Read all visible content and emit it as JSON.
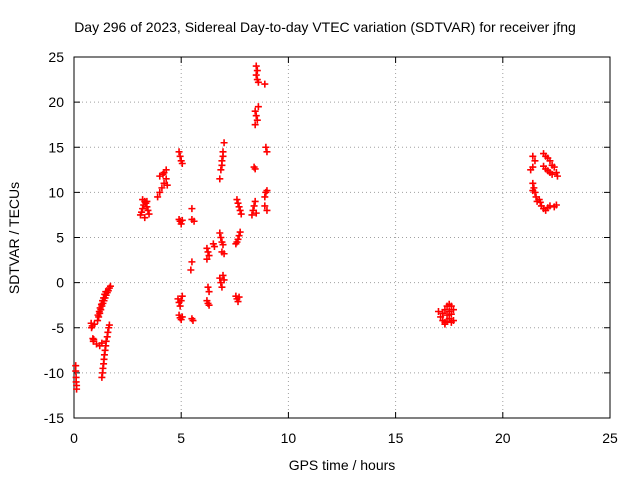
{
  "chart_data": {
    "type": "scatter",
    "title": "Day 296 of 2023, Sidereal Day-to-day VTEC variation (SDTVAR) for receiver jfng",
    "xlabel": "GPS time / hours",
    "ylabel": "SDTVAR / TECUs",
    "xlim": [
      0,
      25
    ],
    "ylim": [
      -15,
      25
    ],
    "xticks": [
      0,
      5,
      10,
      15,
      20,
      25
    ],
    "yticks": [
      -15,
      -10,
      -5,
      0,
      5,
      10,
      15,
      20,
      25
    ],
    "grid": true,
    "marker": "plus",
    "series": [
      {
        "name": "SDTVAR",
        "color": "#ff0000",
        "points": [
          [
            0.08,
            -9.2
          ],
          [
            0.08,
            -9.8
          ],
          [
            0.1,
            -10.5
          ],
          [
            0.1,
            -11.0
          ],
          [
            0.12,
            -11.4
          ],
          [
            0.12,
            -11.8
          ],
          [
            0.8,
            -4.5
          ],
          [
            0.82,
            -5.0
          ],
          [
            0.85,
            -4.8
          ],
          [
            0.88,
            -6.2
          ],
          [
            0.9,
            -6.5
          ],
          [
            0.92,
            -6.3
          ],
          [
            0.95,
            -4.6
          ],
          [
            1.1,
            -4.2
          ],
          [
            1.15,
            -3.8
          ],
          [
            1.2,
            -3.4
          ],
          [
            1.25,
            -3.0
          ],
          [
            1.3,
            -2.6
          ],
          [
            1.35,
            -2.3
          ],
          [
            1.4,
            -2.0
          ],
          [
            1.45,
            -1.7
          ],
          [
            1.5,
            -1.4
          ],
          [
            1.55,
            -1.1
          ],
          [
            1.6,
            -0.9
          ],
          [
            1.65,
            -0.6
          ],
          [
            1.7,
            -0.4
          ],
          [
            1.12,
            -3.6
          ],
          [
            1.18,
            -3.2
          ],
          [
            1.22,
            -2.8
          ],
          [
            1.28,
            -2.4
          ],
          [
            1.33,
            -2.0
          ],
          [
            1.38,
            -1.7
          ],
          [
            1.43,
            -1.3
          ],
          [
            1.48,
            -1.0
          ],
          [
            1.2,
            -7.0
          ],
          [
            1.3,
            -6.7
          ],
          [
            1.05,
            -6.8
          ],
          [
            1.3,
            -10.5
          ],
          [
            1.33,
            -10.0
          ],
          [
            1.35,
            -9.5
          ],
          [
            1.38,
            -9.0
          ],
          [
            1.4,
            -8.5
          ],
          [
            1.42,
            -8.0
          ],
          [
            1.45,
            -7.5
          ],
          [
            1.48,
            -7.0
          ],
          [
            1.5,
            -6.5
          ],
          [
            1.55,
            -6.0
          ],
          [
            1.58,
            -5.5
          ],
          [
            1.62,
            -5.0
          ],
          [
            1.65,
            -4.7
          ],
          [
            3.1,
            7.5
          ],
          [
            3.15,
            7.8
          ],
          [
            3.2,
            8.2
          ],
          [
            3.25,
            8.6
          ],
          [
            3.3,
            9.0
          ],
          [
            3.35,
            8.8
          ],
          [
            3.4,
            8.4
          ],
          [
            3.45,
            8.0
          ],
          [
            3.5,
            7.6
          ],
          [
            3.2,
            9.2
          ],
          [
            3.3,
            7.2
          ],
          [
            3.4,
            9.0
          ],
          [
            3.9,
            9.5
          ],
          [
            4.0,
            10.0
          ],
          [
            4.1,
            10.5
          ],
          [
            4.2,
            11.0
          ],
          [
            4.3,
            11.5
          ],
          [
            4.15,
            12.0
          ],
          [
            4.3,
            12.5
          ],
          [
            4.2,
            12.2
          ],
          [
            4.35,
            10.8
          ],
          [
            4.0,
            11.8
          ],
          [
            4.9,
            14.5
          ],
          [
            4.95,
            14.0
          ],
          [
            5.0,
            13.5
          ],
          [
            5.05,
            13.2
          ],
          [
            4.9,
            7.0
          ],
          [
            4.95,
            6.8
          ],
          [
            5.0,
            6.5
          ],
          [
            5.05,
            6.9
          ],
          [
            4.85,
            -1.8
          ],
          [
            4.9,
            -2.2
          ],
          [
            4.95,
            -2.6
          ],
          [
            5.0,
            -2.0
          ],
          [
            5.05,
            -1.5
          ],
          [
            4.9,
            -3.6
          ],
          [
            4.95,
            -3.9
          ],
          [
            5.0,
            -4.1
          ],
          [
            5.05,
            -3.8
          ],
          [
            5.5,
            8.2
          ],
          [
            5.5,
            7.0
          ],
          [
            5.6,
            6.8
          ],
          [
            5.5,
            2.3
          ],
          [
            5.45,
            1.4
          ],
          [
            5.5,
            -4.0
          ],
          [
            5.55,
            -4.2
          ],
          [
            6.2,
            3.8
          ],
          [
            6.25,
            3.4
          ],
          [
            6.3,
            3.0
          ],
          [
            6.2,
            2.6
          ],
          [
            6.25,
            -0.5
          ],
          [
            6.3,
            -1.0
          ],
          [
            6.2,
            -2.0
          ],
          [
            6.25,
            -2.3
          ],
          [
            6.3,
            -2.5
          ],
          [
            6.5,
            4.3
          ],
          [
            6.55,
            4.0
          ],
          [
            6.8,
            11.5
          ],
          [
            6.85,
            12.5
          ],
          [
            6.9,
            13.5
          ],
          [
            6.95,
            14.5
          ],
          [
            7.0,
            15.5
          ],
          [
            6.9,
            13.0
          ],
          [
            6.95,
            14.0
          ],
          [
            6.8,
            5.5
          ],
          [
            6.85,
            5.0
          ],
          [
            6.9,
            4.5
          ],
          [
            6.95,
            4.2
          ],
          [
            7.0,
            3.2
          ],
          [
            6.9,
            3.4
          ],
          [
            6.8,
            0.5
          ],
          [
            6.85,
            0.0
          ],
          [
            6.9,
            -0.5
          ],
          [
            6.95,
            0.8
          ],
          [
            7.0,
            0.3
          ],
          [
            7.6,
            9.2
          ],
          [
            7.65,
            8.8
          ],
          [
            7.7,
            8.4
          ],
          [
            7.75,
            8.0
          ],
          [
            7.8,
            7.6
          ],
          [
            7.6,
            4.5
          ],
          [
            7.65,
            4.8
          ],
          [
            7.7,
            5.2
          ],
          [
            7.75,
            5.6
          ],
          [
            7.55,
            4.3
          ],
          [
            7.55,
            -1.5
          ],
          [
            7.6,
            -1.8
          ],
          [
            7.65,
            -2.1
          ],
          [
            7.7,
            -1.6
          ],
          [
            8.4,
            12.8
          ],
          [
            8.45,
            12.6
          ],
          [
            8.3,
            7.5
          ],
          [
            8.35,
            8.0
          ],
          [
            8.4,
            8.5
          ],
          [
            8.45,
            9.0
          ],
          [
            8.5,
            7.7
          ],
          [
            8.5,
            24.0
          ],
          [
            8.55,
            23.5
          ],
          [
            8.5,
            23.0
          ],
          [
            8.55,
            22.5
          ],
          [
            8.6,
            22.2
          ],
          [
            8.45,
            19.0
          ],
          [
            8.5,
            18.5
          ],
          [
            8.55,
            18.0
          ],
          [
            8.45,
            17.5
          ],
          [
            8.6,
            19.5
          ],
          [
            8.9,
            22.0
          ],
          [
            8.95,
            15.0
          ],
          [
            9.0,
            14.5
          ],
          [
            8.95,
            10.0
          ],
          [
            9.0,
            10.2
          ],
          [
            8.9,
            9.5
          ],
          [
            8.9,
            8.5
          ],
          [
            9.0,
            8.0
          ],
          [
            17.0,
            -3.2
          ],
          [
            17.1,
            -3.8
          ],
          [
            17.2,
            -4.2
          ],
          [
            17.3,
            -4.4
          ],
          [
            17.4,
            -4.3
          ],
          [
            17.5,
            -4.0
          ],
          [
            17.6,
            -3.5
          ],
          [
            17.7,
            -3.0
          ],
          [
            17.6,
            -2.6
          ],
          [
            17.5,
            -2.4
          ],
          [
            17.4,
            -2.6
          ],
          [
            17.3,
            -3.0
          ],
          [
            17.2,
            -3.4
          ],
          [
            17.4,
            -3.6
          ],
          [
            17.5,
            -3.2
          ],
          [
            17.6,
            -4.4
          ],
          [
            17.7,
            -4.2
          ],
          [
            17.3,
            -4.6
          ],
          [
            21.4,
            14.0
          ],
          [
            21.5,
            13.5
          ],
          [
            21.4,
            12.8
          ],
          [
            21.3,
            12.5
          ],
          [
            21.4,
            11.0
          ],
          [
            21.45,
            10.5
          ],
          [
            21.5,
            10.0
          ],
          [
            21.55,
            9.5
          ],
          [
            21.6,
            9.0
          ],
          [
            21.4,
            10.2
          ],
          [
            21.9,
            14.3
          ],
          [
            22.0,
            14.0
          ],
          [
            22.1,
            13.8
          ],
          [
            22.2,
            13.5
          ],
          [
            22.3,
            13.0
          ],
          [
            22.4,
            12.8
          ],
          [
            22.5,
            12.2
          ],
          [
            22.55,
            11.8
          ],
          [
            22.0,
            12.6
          ],
          [
            22.1,
            12.4
          ],
          [
            22.2,
            12.2
          ],
          [
            22.3,
            12.0
          ],
          [
            21.9,
            12.9
          ],
          [
            21.8,
            8.5
          ],
          [
            21.9,
            8.2
          ],
          [
            22.0,
            8.0
          ],
          [
            22.1,
            8.3
          ],
          [
            22.2,
            8.5
          ],
          [
            22.4,
            8.4
          ],
          [
            22.5,
            8.6
          ],
          [
            21.7,
            9.2
          ],
          [
            21.75,
            8.9
          ]
        ]
      }
    ]
  }
}
